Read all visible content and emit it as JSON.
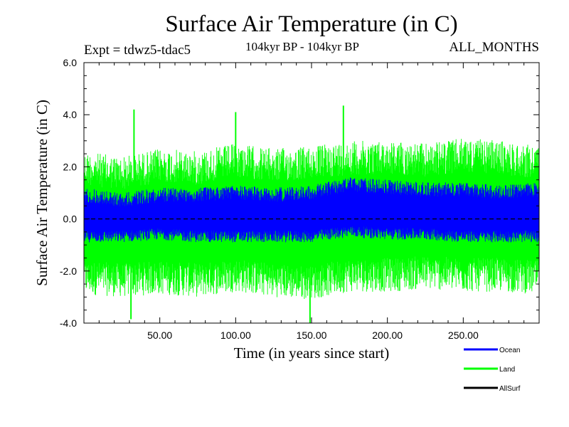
{
  "chart_data": {
    "type": "line",
    "title": "Surface Air Temperature (in C)",
    "experiment": "Expt = tdwz5-tdac5",
    "period": "104kyr BP - 104kyr BP",
    "months": "ALL_MONTHS",
    "xlabel": "Time (in years since start)",
    "ylabel": "Surface Air Temperature (in C)",
    "xlim": [
      0,
      300
    ],
    "ylim": [
      -4.0,
      6.0
    ],
    "x_ticks": [
      50,
      100,
      150,
      200,
      250
    ],
    "x_tick_labels": [
      "50.00",
      "100.00",
      "150.00",
      "200.00",
      "250.00"
    ],
    "y_ticks": [
      -4,
      -2,
      0,
      2,
      4,
      6
    ],
    "y_tick_labels": [
      "-4.0",
      "-2.0",
      "0.0",
      "2.0",
      "4.0",
      "6.0"
    ],
    "legend_position": "bottom-right",
    "series": [
      {
        "name": "Land",
        "color": "#00ff00",
        "style": "monthly anomaly band",
        "x": [
          0,
          25,
          50,
          75,
          100,
          125,
          150,
          175,
          200,
          225,
          250,
          275,
          300
        ],
        "upper_envelope": [
          2.6,
          2.4,
          2.7,
          2.6,
          2.9,
          2.7,
          2.8,
          3.0,
          3.0,
          2.9,
          3.1,
          3.0,
          2.8
        ],
        "lower_envelope": [
          -2.9,
          -3.0,
          -2.9,
          -3.0,
          -2.8,
          -3.0,
          -3.1,
          -2.8,
          -2.8,
          -2.7,
          -2.8,
          -2.8,
          -2.9
        ],
        "peaks": [
          {
            "x": 33,
            "y": 4.2
          },
          {
            "x": 100,
            "y": 4.1
          },
          {
            "x": 171,
            "y": 4.35
          },
          {
            "x": 149,
            "y": -4.0
          },
          {
            "x": 31,
            "y": -3.85
          }
        ]
      },
      {
        "name": "Ocean",
        "color": "#0000ff",
        "style": "monthly anomaly band",
        "x": [
          0,
          25,
          50,
          75,
          100,
          125,
          150,
          175,
          200,
          225,
          250,
          275,
          300
        ],
        "upper_envelope": [
          1.2,
          1.0,
          1.2,
          1.2,
          1.3,
          1.2,
          1.3,
          1.6,
          1.5,
          1.4,
          1.4,
          1.3,
          1.4
        ],
        "lower_envelope": [
          -0.9,
          -0.9,
          -0.8,
          -0.9,
          -0.9,
          -0.9,
          -0.9,
          -0.7,
          -0.8,
          -0.8,
          -0.9,
          -0.9,
          -0.9
        ]
      },
      {
        "name": "AllSurf",
        "color": "#000000",
        "style": "dashed",
        "x": [
          0,
          300
        ],
        "values": [
          0.0,
          0.0
        ]
      }
    ]
  }
}
